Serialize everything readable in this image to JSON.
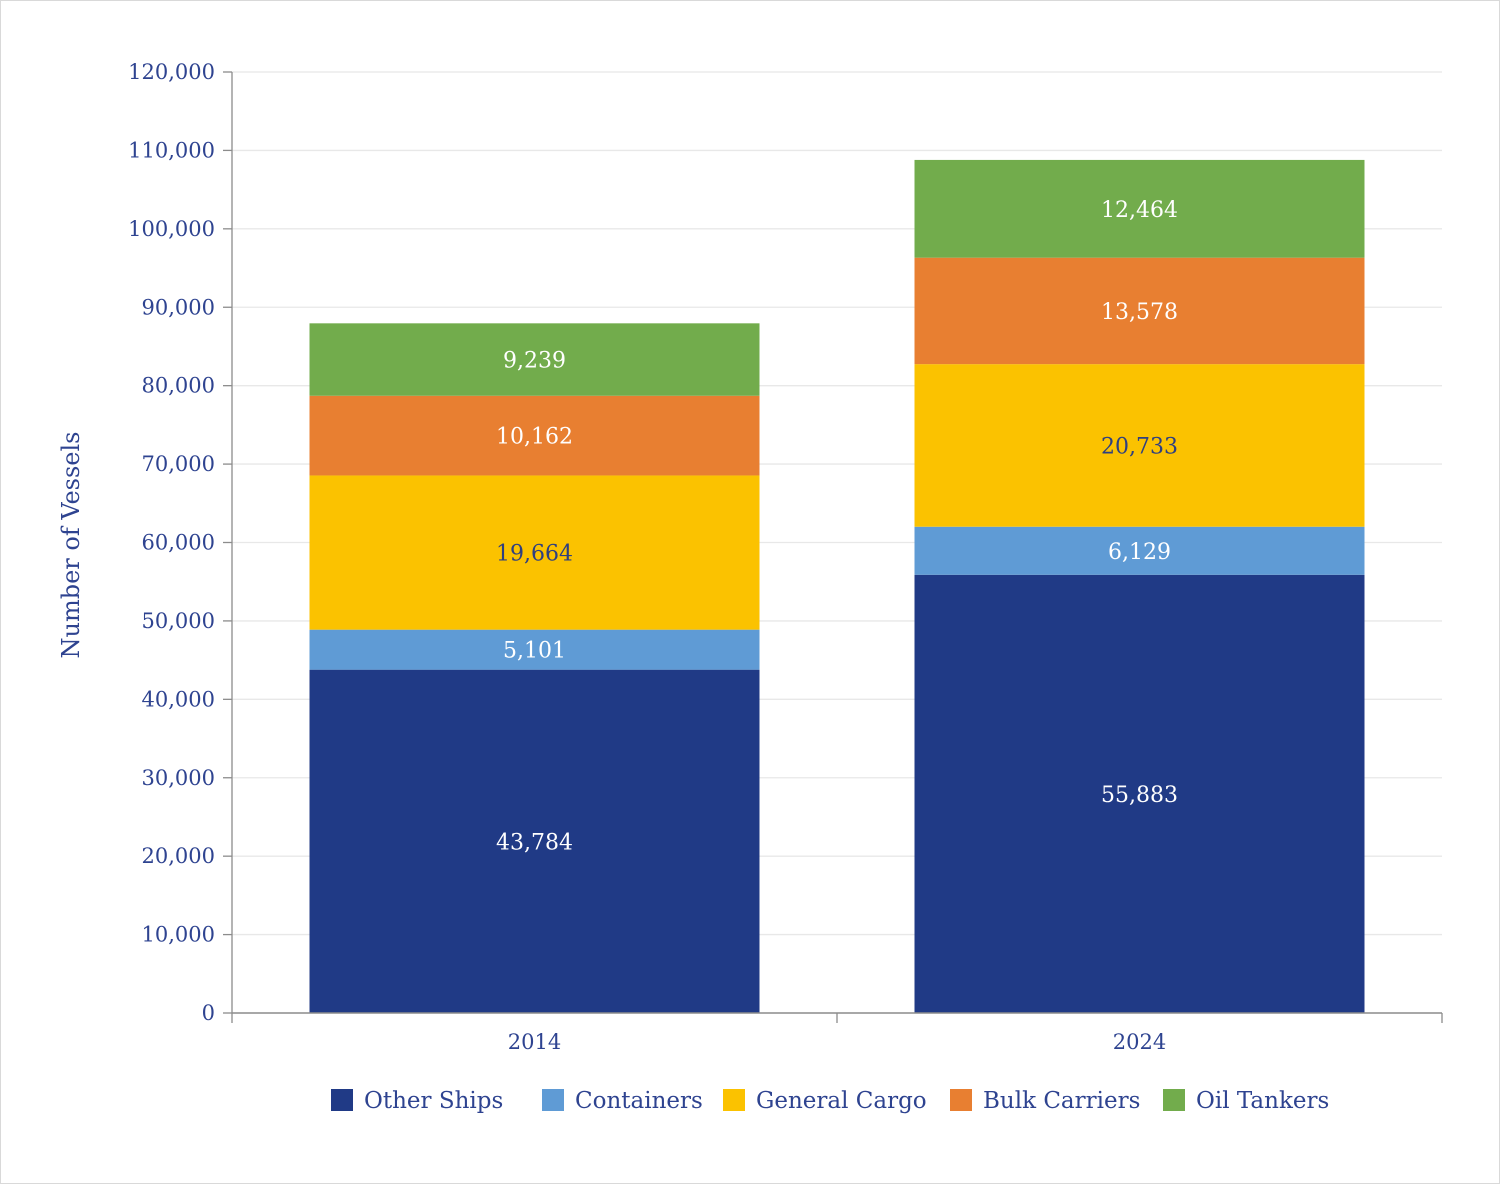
{
  "chart_data": {
    "type": "bar",
    "stacked": true,
    "title": "",
    "xlabel": "",
    "ylabel": "Number of Vessels",
    "ylim": [
      0,
      120000
    ],
    "yticks": [
      0,
      10000,
      20000,
      30000,
      40000,
      50000,
      60000,
      70000,
      80000,
      90000,
      100000,
      110000,
      120000
    ],
    "ytick_labels": [
      "0",
      "10,000",
      "20,000",
      "30,000",
      "40,000",
      "50,000",
      "60,000",
      "70,000",
      "80,000",
      "90,000",
      "100,000",
      "110,000",
      "120,000"
    ],
    "grid": true,
    "legend_position": "bottom",
    "categories": [
      "2014",
      "2024"
    ],
    "series": [
      {
        "name": "Other Ships",
        "color": "#203a86",
        "label_color": "#ffffff",
        "values": [
          43784,
          55883
        ],
        "labels": [
          "43,784",
          "55,883"
        ]
      },
      {
        "name": "Containers",
        "color": "#5f9bd5",
        "label_color": "#ffffff",
        "values": [
          5101,
          6129
        ],
        "labels": [
          "5,101",
          "6,129"
        ]
      },
      {
        "name": "General Cargo",
        "color": "#fbc200",
        "label_color": "#2e3f80",
        "values": [
          19664,
          20733
        ],
        "labels": [
          "19,664",
          "20,733"
        ]
      },
      {
        "name": "Bulk Carriers",
        "color": "#e87f31",
        "label_color": "#ffffff",
        "values": [
          10162,
          13578
        ],
        "labels": [
          "10,162",
          "13,578"
        ]
      },
      {
        "name": "Oil Tankers",
        "color": "#72ac4c",
        "label_color": "#ffffff",
        "values": [
          9239,
          12464
        ],
        "labels": [
          "9,239",
          "12,464"
        ]
      }
    ]
  }
}
